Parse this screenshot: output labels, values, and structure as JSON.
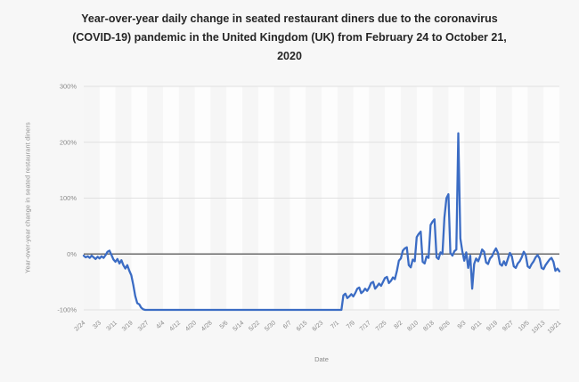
{
  "figure": {
    "title": "Year-over-year daily change in seated restaurant diners due to the coronavirus (COVID-19) pandemic in the United Kingdom (UK) from February 24 to October 21, 2020",
    "y_axis_title": "Year-over-year change in seated restaurant diners",
    "x_axis_title": "Date"
  },
  "colors": {
    "line": "#3B6CC4",
    "background": "#f7f7f7",
    "plot_background": "#fdfdfd",
    "band": "#f1f1f1",
    "grid": "#e0e0e0",
    "zero_line": "#6b6b6b",
    "title_text": "#262626",
    "tick_text": "#8a8a8a"
  },
  "chart_data": {
    "type": "line",
    "title": "Year-over-year daily change in seated restaurant diners due to the coronavirus (COVID-19) pandemic in the United Kingdom (UK) from February 24 to October 21, 2020",
    "xlabel": "Date",
    "ylabel": "Year-over-year change in seated restaurant diners",
    "unit": "%",
    "ylim": [
      -100,
      300
    ],
    "y_ticks": [
      300,
      200,
      100,
      0,
      -100
    ],
    "y_tick_suffix": "%",
    "grid": true,
    "zero_line": true,
    "legend": "none",
    "x_tick_labels": [
      "2/24",
      "3/3",
      "3/11",
      "3/19",
      "3/27",
      "4/4",
      "4/12",
      "4/20",
      "4/28",
      "5/6",
      "5/14",
      "5/22",
      "5/30",
      "6/7",
      "6/15",
      "6/23",
      "7/1",
      "7/9",
      "7/17",
      "7/25",
      "8/2",
      "8/10",
      "8/18",
      "8/26",
      "9/3",
      "9/11",
      "9/19",
      "9/27",
      "10/5",
      "10/13",
      "10/21"
    ],
    "x_tick_interval_days": 8,
    "series": [
      {
        "name": "YoY change in seated restaurant diners (%)",
        "interval": "daily",
        "start_label": "2/24",
        "end_label": "10/21",
        "values": [
          -3,
          -6,
          -4,
          -7,
          -3,
          -6,
          -9,
          -5,
          -8,
          -4,
          -7,
          -2,
          4,
          6,
          -2,
          -10,
          -14,
          -9,
          -17,
          -11,
          -20,
          -26,
          -20,
          -30,
          -38,
          -55,
          -75,
          -88,
          -90,
          -96,
          -99,
          -100,
          -100,
          -100,
          -100,
          -100,
          -100,
          -100,
          -100,
          -100,
          -100,
          -100,
          -100,
          -100,
          -100,
          -100,
          -100,
          -100,
          -100,
          -100,
          -100,
          -100,
          -100,
          -100,
          -100,
          -100,
          -100,
          -100,
          -100,
          -100,
          -100,
          -100,
          -100,
          -100,
          -100,
          -100,
          -100,
          -100,
          -100,
          -100,
          -100,
          -100,
          -100,
          -100,
          -100,
          -100,
          -100,
          -100,
          -100,
          -100,
          -100,
          -100,
          -100,
          -100,
          -100,
          -100,
          -100,
          -100,
          -100,
          -100,
          -100,
          -100,
          -100,
          -100,
          -100,
          -100,
          -100,
          -100,
          -100,
          -100,
          -100,
          -100,
          -100,
          -100,
          -100,
          -100,
          -100,
          -100,
          -100,
          -100,
          -100,
          -100,
          -100,
          -100,
          -100,
          -100,
          -100,
          -100,
          -100,
          -100,
          -100,
          -100,
          -100,
          -100,
          -100,
          -100,
          -100,
          -100,
          -100,
          -100,
          -100,
          -74,
          -71,
          -79,
          -76,
          -72,
          -76,
          -70,
          -62,
          -60,
          -70,
          -67,
          -62,
          -66,
          -60,
          -52,
          -50,
          -62,
          -58,
          -53,
          -57,
          -50,
          -43,
          -41,
          -52,
          -48,
          -42,
          -45,
          -30,
          -12,
          -8,
          6,
          10,
          12,
          -20,
          -24,
          -10,
          -13,
          30,
          36,
          40,
          -14,
          -17,
          -4,
          -7,
          52,
          58,
          62,
          -6,
          -9,
          3,
          0,
          65,
          100,
          107,
          2,
          -3,
          5,
          8,
          216,
          28,
          5,
          -12,
          3,
          -25,
          -3,
          -62,
          -18,
          -8,
          -13,
          -4,
          8,
          4,
          -15,
          -18,
          -8,
          -4,
          4,
          10,
          2,
          -18,
          -21,
          -13,
          -20,
          -9,
          2,
          -4,
          -22,
          -25,
          -17,
          -13,
          -6,
          4,
          -2,
          -22,
          -25,
          -18,
          -13,
          -6,
          -2,
          -8,
          -25,
          -27,
          -20,
          -15,
          -10,
          -7,
          -14,
          -30,
          -26,
          -31
        ]
      }
    ]
  }
}
